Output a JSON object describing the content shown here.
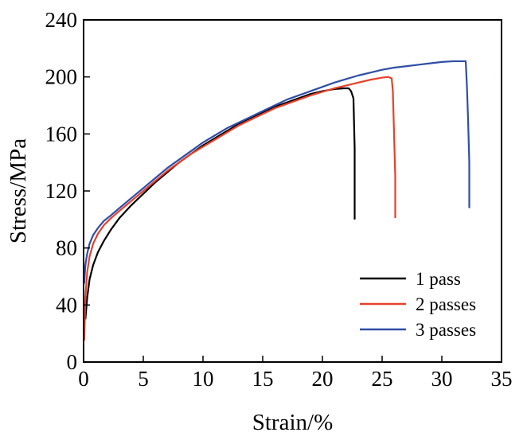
{
  "chart_data": {
    "type": "line",
    "title": "",
    "xlabel": "Strain/%",
    "ylabel": "Stress/MPa",
    "xlim": [
      0,
      35
    ],
    "ylim": [
      0,
      240
    ],
    "xticks": [
      0,
      5,
      10,
      15,
      20,
      25,
      30,
      35
    ],
    "yticks": [
      0,
      40,
      80,
      120,
      160,
      200,
      240
    ],
    "grid": false,
    "legend_position": "bottom-right",
    "series": [
      {
        "name": "1 pass",
        "color": "#000000",
        "x": [
          0.15,
          0.3,
          0.5,
          0.8,
          1.2,
          1.7,
          2.3,
          3.0,
          4.0,
          5.0,
          6.0,
          7.0,
          8.0,
          9.0,
          10.0,
          11.0,
          12.0,
          13.0,
          14.0,
          15.0,
          16.0,
          17.0,
          18.0,
          19.0,
          20.0,
          21.0,
          21.8,
          22.2,
          22.4,
          22.6,
          22.7,
          22.7
        ],
        "y": [
          30,
          45,
          58,
          68,
          77,
          85,
          93,
          101,
          110,
          118,
          126,
          133,
          140,
          146,
          152,
          157,
          162,
          167,
          171,
          175,
          179,
          182,
          185,
          188,
          190,
          191.5,
          192,
          192,
          190,
          185,
          150,
          100
        ]
      },
      {
        "name": "2 passes",
        "color": "#e8402a",
        "x": [
          0.05,
          0.15,
          0.3,
          0.5,
          0.8,
          1.2,
          1.7,
          2.3,
          3.0,
          4.0,
          5.0,
          6.0,
          7.0,
          8.0,
          9.0,
          10.0,
          11.0,
          12.0,
          13.0,
          14.0,
          15.0,
          16.0,
          17.0,
          18.0,
          19.0,
          20.0,
          21.0,
          22.0,
          23.0,
          24.0,
          25.0,
          25.5,
          25.8,
          25.9,
          26.0,
          26.1,
          26.1
        ],
        "y": [
          15,
          45,
          63,
          74,
          83,
          90,
          96,
          101,
          106,
          113,
          120,
          127,
          134,
          140,
          146,
          151,
          156,
          161,
          166,
          170,
          174,
          178,
          181,
          184,
          187,
          189.5,
          192,
          194,
          196,
          198,
          199.5,
          200,
          199,
          190,
          160,
          130,
          101
        ]
      },
      {
        "name": "3 passes",
        "color": "#2f4ea6",
        "x": [
          0.05,
          0.15,
          0.3,
          0.5,
          0.8,
          1.2,
          1.7,
          2.3,
          3.0,
          4.0,
          5.0,
          6.0,
          7.0,
          8.0,
          9.0,
          10.0,
          11.0,
          12.0,
          13.0,
          14.0,
          15.0,
          16.0,
          17.0,
          18.0,
          19.0,
          20.0,
          21.0,
          22.0,
          23.0,
          24.0,
          25.0,
          26.0,
          27.0,
          28.0,
          29.0,
          30.0,
          31.0,
          32.0,
          32.1,
          32.2,
          32.3,
          32.3
        ],
        "y": [
          55,
          68,
          76,
          83,
          89,
          94,
          99,
          103,
          108,
          115,
          122,
          129,
          136,
          142,
          148,
          154,
          159,
          164,
          168,
          172,
          176,
          180,
          184,
          187,
          190,
          193,
          196,
          198.5,
          201,
          203,
          205,
          206.5,
          207.5,
          208.5,
          209.5,
          210.5,
          211,
          211,
          194,
          170,
          140,
          108
        ]
      }
    ]
  }
}
